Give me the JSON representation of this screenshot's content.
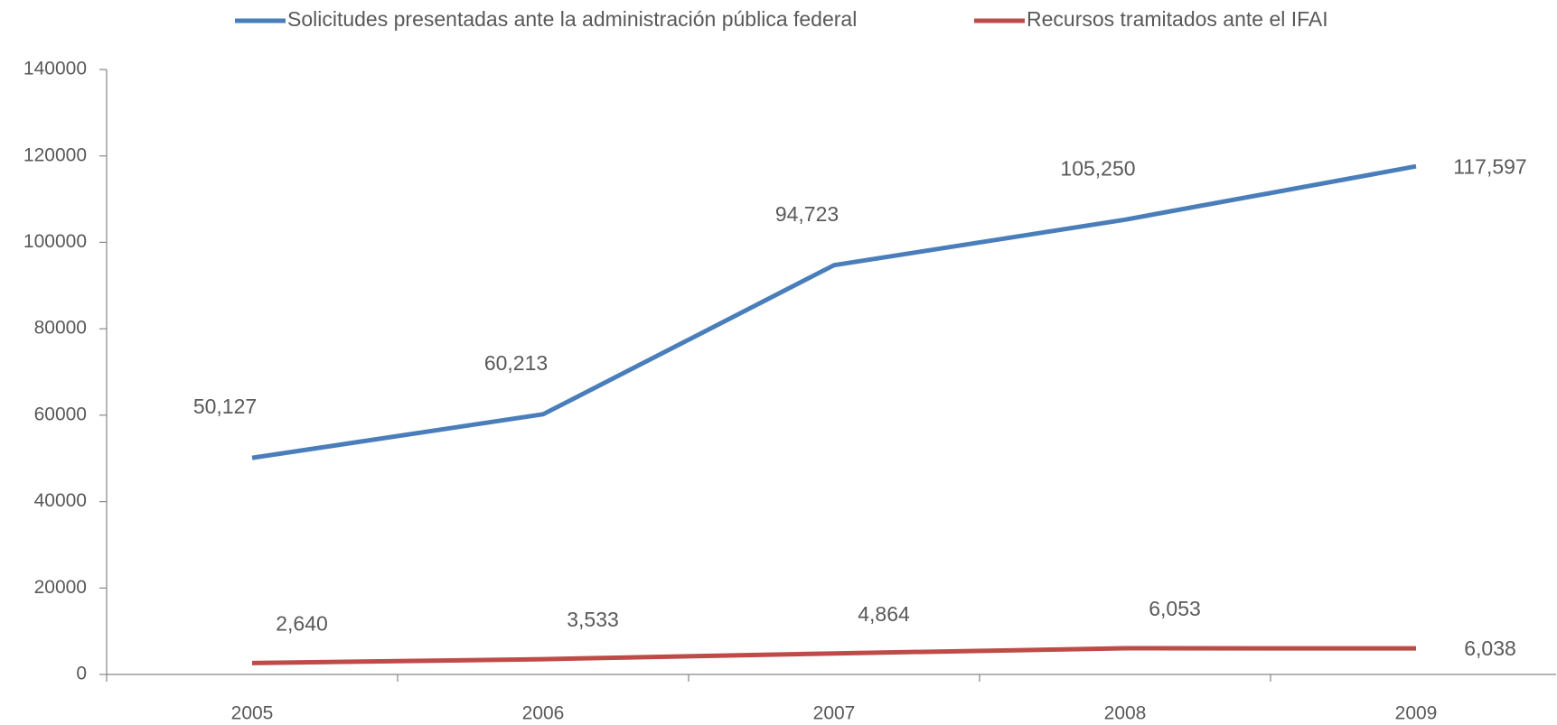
{
  "chart_data": {
    "type": "line",
    "categories": [
      "2005",
      "2006",
      "2007",
      "2008",
      "2009"
    ],
    "series": [
      {
        "name": "Solicitudes presentadas ante la administración pública federal",
        "color": "#4a7ebb",
        "values": [
          50127,
          60213,
          94723,
          105250,
          117597
        ],
        "value_labels": [
          "50,127",
          "60,213",
          "94,723",
          "105,250",
          "117,597"
        ]
      },
      {
        "name": "Recursos tramitados ante el IFAI",
        "color": "#be4b48",
        "values": [
          2640,
          3533,
          4864,
          6053,
          6038
        ],
        "value_labels": [
          "2,640",
          "3,533",
          "4,864",
          "6,053",
          "6,038"
        ]
      }
    ],
    "ylim": [
      0,
      140000
    ],
    "yticks": [
      0,
      20000,
      40000,
      60000,
      80000,
      100000,
      120000,
      140000
    ],
    "grid": false,
    "legend": "top"
  }
}
